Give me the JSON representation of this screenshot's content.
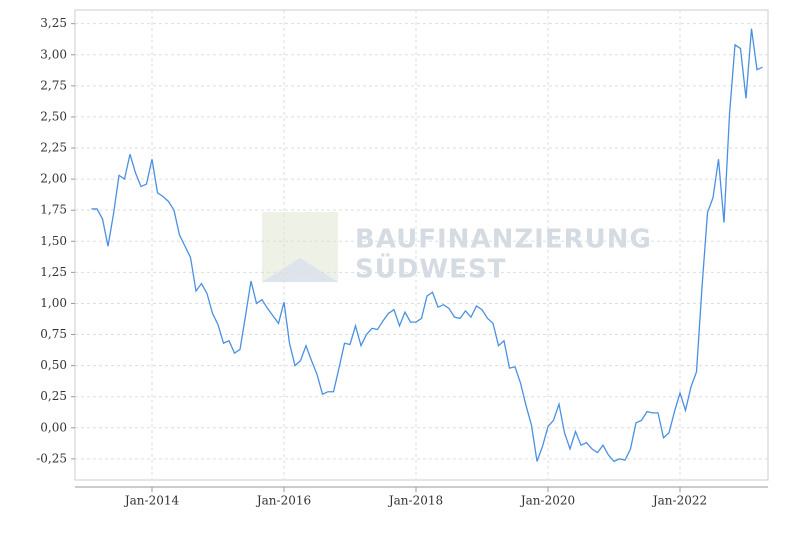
{
  "chart_data": {
    "type": "line",
    "watermark": [
      "BAUFINANZIERUNG",
      "SÜDWEST"
    ],
    "x": [
      "2013-02",
      "2013-03",
      "2013-04",
      "2013-05",
      "2013-06",
      "2013-07",
      "2013-08",
      "2013-09",
      "2013-10",
      "2013-11",
      "2013-12",
      "2014-01",
      "2014-02",
      "2014-03",
      "2014-04",
      "2014-05",
      "2014-06",
      "2014-07",
      "2014-08",
      "2014-09",
      "2014-10",
      "2014-11",
      "2014-12",
      "2015-01",
      "2015-02",
      "2015-03",
      "2015-04",
      "2015-05",
      "2015-06",
      "2015-07",
      "2015-08",
      "2015-09",
      "2015-10",
      "2015-11",
      "2015-12",
      "2016-01",
      "2016-02",
      "2016-03",
      "2016-04",
      "2016-05",
      "2016-06",
      "2016-07",
      "2016-08",
      "2016-09",
      "2016-10",
      "2016-11",
      "2016-12",
      "2017-01",
      "2017-02",
      "2017-03",
      "2017-04",
      "2017-05",
      "2017-06",
      "2017-07",
      "2017-08",
      "2017-09",
      "2017-10",
      "2017-11",
      "2017-12",
      "2018-01",
      "2018-02",
      "2018-03",
      "2018-04",
      "2018-05",
      "2018-06",
      "2018-07",
      "2018-08",
      "2018-09",
      "2018-10",
      "2018-11",
      "2018-12",
      "2019-01",
      "2019-02",
      "2019-03",
      "2019-04",
      "2019-05",
      "2019-06",
      "2019-07",
      "2019-08",
      "2019-09",
      "2019-10",
      "2019-11",
      "2019-12",
      "2020-01",
      "2020-02",
      "2020-03",
      "2020-04",
      "2020-05",
      "2020-06",
      "2020-07",
      "2020-08",
      "2020-09",
      "2020-10",
      "2020-11",
      "2020-12",
      "2021-01",
      "2021-02",
      "2021-03",
      "2021-04",
      "2021-05",
      "2021-06",
      "2021-07",
      "2021-08",
      "2021-09",
      "2021-10",
      "2021-11",
      "2021-12",
      "2022-01",
      "2022-02",
      "2022-03",
      "2022-04",
      "2022-05",
      "2022-06",
      "2022-07",
      "2022-08",
      "2022-09",
      "2022-10",
      "2022-11",
      "2022-12",
      "2023-01",
      "2023-02",
      "2023-03",
      "2023-04"
    ],
    "series": [
      {
        "color": "#4a90e2",
        "values": [
          1.76,
          1.76,
          1.68,
          1.46,
          1.72,
          2.03,
          2.0,
          2.2,
          2.05,
          1.94,
          1.96,
          2.16,
          1.89,
          1.86,
          1.82,
          1.75,
          1.55,
          1.46,
          1.37,
          1.1,
          1.16,
          1.08,
          0.92,
          0.83,
          0.68,
          0.7,
          0.6,
          0.63,
          0.9,
          1.18,
          1.0,
          1.03,
          0.96,
          0.9,
          0.84,
          1.01,
          0.68,
          0.5,
          0.54,
          0.66,
          0.54,
          0.43,
          0.27,
          0.29,
          0.29,
          0.48,
          0.68,
          0.67,
          0.82,
          0.66,
          0.75,
          0.8,
          0.79,
          0.86,
          0.92,
          0.95,
          0.82,
          0.93,
          0.85,
          0.85,
          0.88,
          1.06,
          1.09,
          0.97,
          0.99,
          0.96,
          0.89,
          0.88,
          0.94,
          0.89,
          0.98,
          0.95,
          0.88,
          0.84,
          0.66,
          0.7,
          0.48,
          0.49,
          0.36,
          0.18,
          0.02,
          -0.27,
          -0.15,
          0.01,
          0.06,
          0.19,
          -0.04,
          -0.17,
          -0.03,
          -0.14,
          -0.12,
          -0.17,
          -0.2,
          -0.14,
          -0.22,
          -0.27,
          -0.25,
          -0.26,
          -0.17,
          0.04,
          0.06,
          0.13,
          0.12,
          0.12,
          -0.08,
          -0.04,
          0.13,
          0.28,
          0.14,
          0.33,
          0.45,
          1.13,
          1.73,
          1.85,
          2.16,
          1.65,
          2.52,
          3.08,
          3.05,
          2.65,
          3.21,
          2.88,
          2.9
        ]
      }
    ],
    "xlim": [
      "2012-11",
      "2023-05"
    ],
    "xticks": [
      {
        "value": "2014-01",
        "label": "Jan-2014"
      },
      {
        "value": "2016-01",
        "label": "Jan-2016"
      },
      {
        "value": "2018-01",
        "label": "Jan-2018"
      },
      {
        "value": "2020-01",
        "label": "Jan-2020"
      },
      {
        "value": "2022-01",
        "label": "Jan-2022"
      }
    ],
    "ylim": [
      -0.42,
      3.36
    ],
    "yticks": [
      {
        "value": -0.25,
        "label": "-0,25"
      },
      {
        "value": 0,
        "label": "0,00"
      },
      {
        "value": 0.25,
        "label": "0,25"
      },
      {
        "value": 0.5,
        "label": "0,50"
      },
      {
        "value": 0.75,
        "label": "0,75"
      },
      {
        "value": 1,
        "label": "1,00"
      },
      {
        "value": 1.25,
        "label": "1,25"
      },
      {
        "value": 1.5,
        "label": "1,50"
      },
      {
        "value": 1.75,
        "label": "1,75"
      },
      {
        "value": 2,
        "label": "2,00"
      },
      {
        "value": 2.25,
        "label": "2,25"
      },
      {
        "value": 2.5,
        "label": "2,50"
      },
      {
        "value": 2.75,
        "label": "2,75"
      },
      {
        "value": 3,
        "label": "3,00"
      },
      {
        "value": 3.25,
        "label": "3,25"
      }
    ],
    "grid": true
  }
}
